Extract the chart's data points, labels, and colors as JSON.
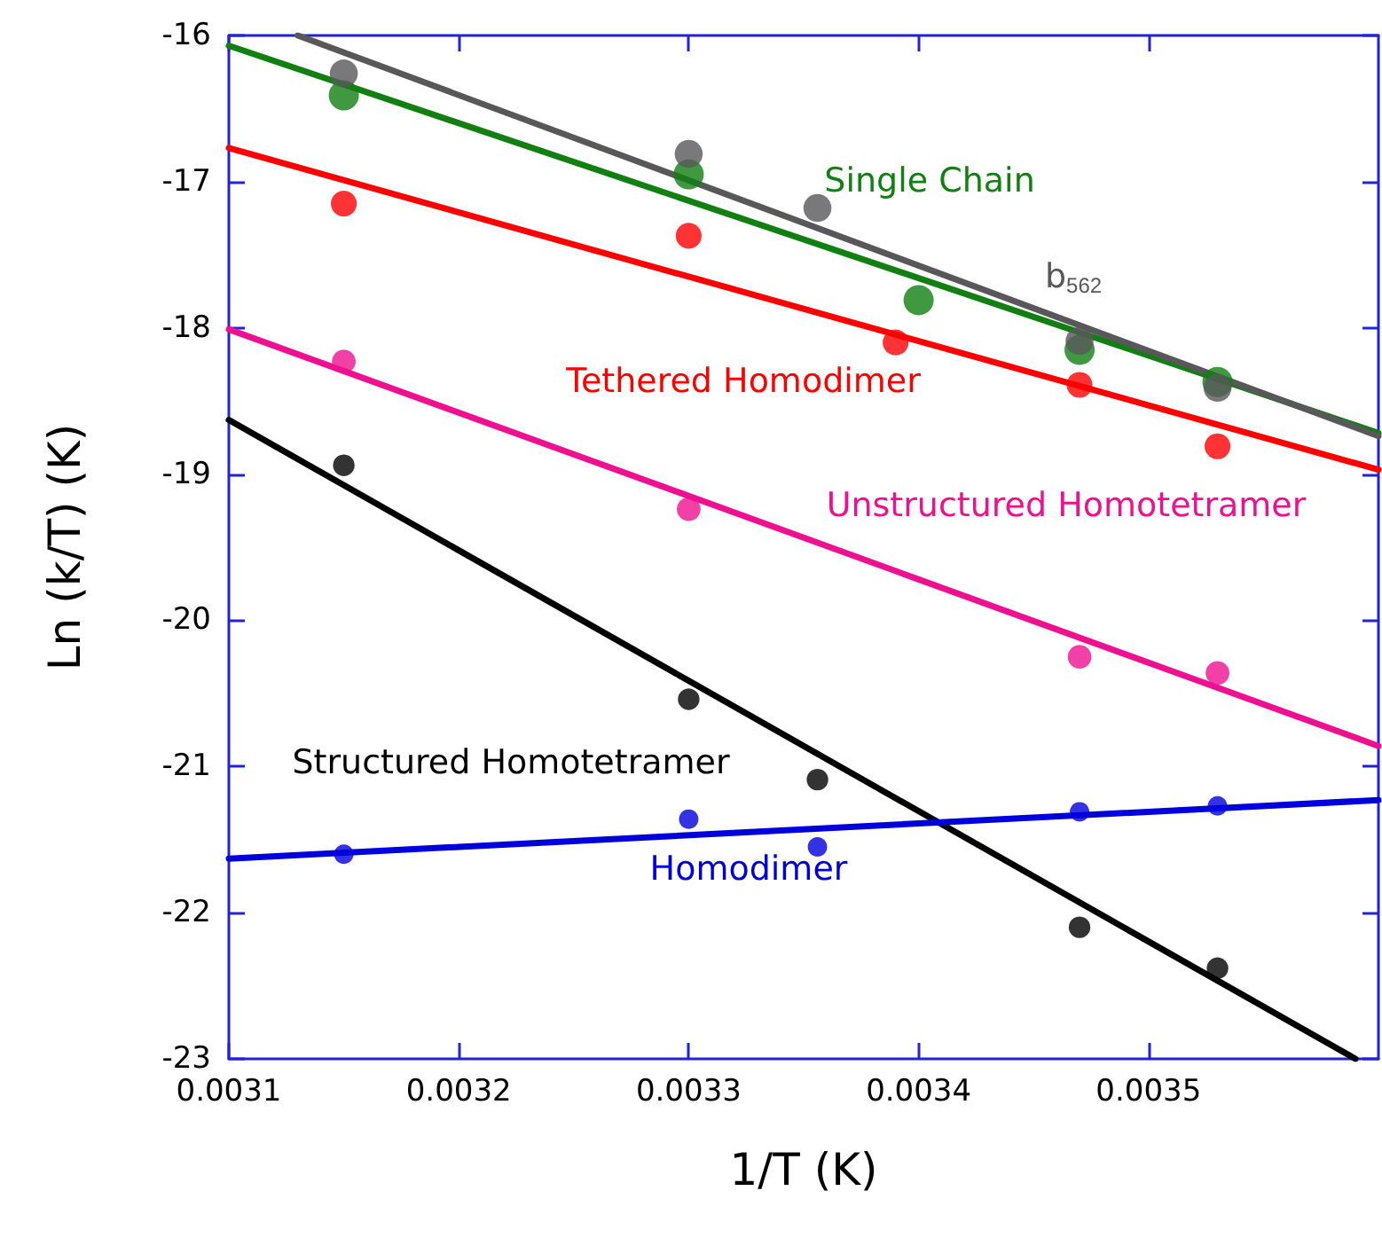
{
  "chart_data": {
    "type": "scatter",
    "xlabel": "1/T (K)",
    "ylabel": "Ln (k/T) (K)",
    "xlim": [
      0.0031,
      0.0036
    ],
    "xticks": [
      0.0031,
      0.0032,
      0.0033,
      0.0034,
      0.0035
    ],
    "ylim": [
      -23,
      -16
    ],
    "yticks": [
      -23,
      -22,
      -21,
      -20,
      -19,
      -18,
      -17,
      -16
    ],
    "grid": false,
    "marker": "circle",
    "series": [
      {
        "name": "Single Chain",
        "color": "#108010",
        "x": [
          0.00315,
          0.0033,
          0.0034,
          0.00347,
          0.00353
        ],
        "values": [
          -16.41,
          -16.95,
          -17.81,
          -18.15,
          -18.37
        ]
      },
      {
        "name": "b$_{562}$",
        "color": "#58585a",
        "x": [
          0.00315,
          0.0033,
          0.003356,
          0.00347,
          0.00353
        ],
        "values": [
          -16.26,
          -16.81,
          -17.18,
          -18.09,
          -18.41
        ]
      },
      {
        "name": "Tethered Homodimer",
        "color": "#ff0000",
        "x": [
          0.00315,
          0.0033,
          0.00339,
          0.00347,
          0.00353
        ],
        "values": [
          -17.15,
          -17.37,
          -18.1,
          -18.39,
          -18.81
        ]
      },
      {
        "name": "Unstructured Homotetramer",
        "color": "#ee1090",
        "x": [
          0.00315,
          0.0033,
          0.00347,
          0.00353
        ],
        "values": [
          -18.23,
          -19.24,
          -20.25,
          -20.36
        ]
      },
      {
        "name": "Structured Homotetramer",
        "color": "#000000",
        "x": [
          0.00315,
          0.0033,
          0.003356,
          0.00347,
          0.00353
        ],
        "values": [
          -18.94,
          -20.54,
          -21.09,
          -22.1,
          -22.38
        ]
      },
      {
        "name": "Homodimer",
        "color": "#0000dd",
        "x": [
          0.00315,
          0.0033,
          0.003356,
          0.00347,
          0.00353
        ],
        "values": [
          -21.6,
          -21.36,
          -21.55,
          -21.31,
          -21.27
        ]
      },
      {
        "type": "line",
        "marker": "none",
        "color": "#108010",
        "x": [
          0.0031,
          0.0036
        ],
        "values": [
          -16.07,
          -18.72
        ]
      },
      {
        "type": "line",
        "marker": "none",
        "color": "#58585a",
        "x": [
          0.00313,
          0.0036
        ],
        "values": [
          -16,
          -18.74
        ]
      },
      {
        "type": "line",
        "marker": "none",
        "color": "#ff0000",
        "x": [
          0.0031,
          0.0036
        ],
        "values": [
          -16.77,
          -18.97
        ]
      },
      {
        "type": "line",
        "marker": "none",
        "color": "#ee1090",
        "x": [
          0.0031,
          0.0036
        ],
        "values": [
          -18.01,
          -20.86
        ]
      },
      {
        "type": "line",
        "marker": "none",
        "color": "#000000",
        "x": [
          0.0031,
          0.00359
        ],
        "values": [
          -18.63,
          -23
        ]
      },
      {
        "type": "line",
        "marker": "none",
        "color": "#0000dd",
        "x": [
          0.0031,
          0.0036
        ],
        "values": [
          -21.63,
          -21.23
        ]
      }
    ]
  }
}
